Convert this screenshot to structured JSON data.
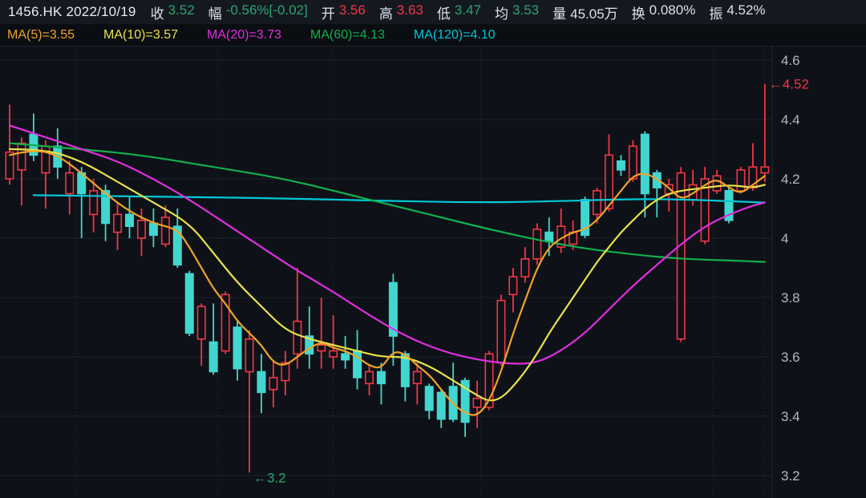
{
  "header": {
    "title": "1456.HK 2022/10/19",
    "fields": [
      {
        "label": "收",
        "value": "3.52",
        "color": "green"
      },
      {
        "label": "幅",
        "value": "-0.56%[-0.02]",
        "color": "green"
      },
      {
        "label": "开",
        "value": "3.56",
        "color": "red"
      },
      {
        "label": "高",
        "value": "3.63",
        "color": "red"
      },
      {
        "label": "低",
        "value": "3.47",
        "color": "green"
      },
      {
        "label": "均",
        "value": "3.53",
        "color": "green"
      },
      {
        "label": "量",
        "value": "45.05万",
        "color": "white"
      },
      {
        "label": "换",
        "value": "0.080%",
        "color": "white"
      },
      {
        "label": "振",
        "value": "4.52%",
        "color": "white"
      }
    ]
  },
  "ma_legend": [
    {
      "text": "MA(5)=3.55",
      "color": "#f0a32a"
    },
    {
      "text": "MA(10)=3.57",
      "color": "#e9e14b"
    },
    {
      "text": "MA(20)=3.73",
      "color": "#e02ee0"
    },
    {
      "text": "MA(60)=4.13",
      "color": "#12b04d"
    },
    {
      "text": "MA(120)=4.10",
      "color": "#00c8d8"
    }
  ],
  "colors": {
    "bg": "#0e1218",
    "header_bg": "#14181f",
    "legend_bg": "#0a0d12",
    "grid": "#1b212a",
    "grid_dotted": "#262c36",
    "axis_line": "#232833",
    "axis_text": "#b2b7c0",
    "up_candle": "#f23645",
    "down_candle": "#42d6d0",
    "text_green": "#2ba471",
    "text_red": "#f23645",
    "text_white": "#dde1e8"
  },
  "chart_data": {
    "type": "candlestick",
    "title": "1456.HK daily candlesticks with MA(5/10/20/60/120) overlays",
    "legend_position": "top-left",
    "y_axis": {
      "side": "right",
      "min": 3.15,
      "max": 4.65,
      "grid": true,
      "ticks": [
        {
          "label": "4.6",
          "value": 4.6
        },
        {
          "label": "4.4",
          "value": 4.4
        },
        {
          "label": "4.2",
          "value": 4.2
        },
        {
          "label": "4",
          "value": 4.0
        },
        {
          "label": "3.8",
          "value": 3.8
        },
        {
          "label": "3.6",
          "value": 3.6
        },
        {
          "label": "3.4",
          "value": 3.4
        },
        {
          "label": "3.2",
          "value": 3.2
        }
      ]
    },
    "x_axis": {
      "labels_visible": false,
      "bars": 64
    },
    "time_gridlines_bar_index": [
      5.6,
      17.4,
      27.0,
      39.3,
      58.7,
      63.0
    ],
    "candles_format": "[open, high, low, close]",
    "candles": [
      [
        4.2,
        4.45,
        4.18,
        4.29
      ],
      [
        4.23,
        4.34,
        4.11,
        4.32
      ],
      [
        4.35,
        4.42,
        4.26,
        4.28
      ],
      [
        4.22,
        4.33,
        4.1,
        4.31
      ],
      [
        4.31,
        4.37,
        4.2,
        4.24
      ],
      [
        4.15,
        4.26,
        4.08,
        4.22
      ],
      [
        4.22,
        4.24,
        4.0,
        4.15
      ],
      [
        4.08,
        4.2,
        4.02,
        4.16
      ],
      [
        4.16,
        4.18,
        3.99,
        4.05
      ],
      [
        4.02,
        4.12,
        3.96,
        4.08
      ],
      [
        4.08,
        4.14,
        4.0,
        4.04
      ],
      [
        4.0,
        4.1,
        3.94,
        4.06
      ],
      [
        4.05,
        4.1,
        3.97,
        4.01
      ],
      [
        3.98,
        4.11,
        3.97,
        4.07
      ],
      [
        4.04,
        4.1,
        3.9,
        3.91
      ],
      [
        3.88,
        3.89,
        3.67,
        3.68
      ],
      [
        3.66,
        3.78,
        3.57,
        3.77
      ],
      [
        3.65,
        3.78,
        3.54,
        3.55
      ],
      [
        3.62,
        3.82,
        3.61,
        3.81
      ],
      [
        3.7,
        3.72,
        3.52,
        3.56
      ],
      [
        3.55,
        3.69,
        3.21,
        3.66
      ],
      [
        3.55,
        3.61,
        3.41,
        3.48
      ],
      [
        3.49,
        3.59,
        3.43,
        3.53
      ],
      [
        3.52,
        3.62,
        3.47,
        3.58
      ],
      [
        3.61,
        3.9,
        3.56,
        3.72
      ],
      [
        3.67,
        3.77,
        3.56,
        3.61
      ],
      [
        3.62,
        3.8,
        3.56,
        3.64
      ],
      [
        3.6,
        3.74,
        3.56,
        3.62
      ],
      [
        3.61,
        3.67,
        3.56,
        3.59
      ],
      [
        3.62,
        3.69,
        3.49,
        3.53
      ],
      [
        3.51,
        3.57,
        3.47,
        3.55
      ],
      [
        3.55,
        3.58,
        3.44,
        3.51
      ],
      [
        3.85,
        3.88,
        3.57,
        3.67
      ],
      [
        3.61,
        3.62,
        3.45,
        3.5
      ],
      [
        3.51,
        3.58,
        3.44,
        3.55
      ],
      [
        3.5,
        3.51,
        3.39,
        3.42
      ],
      [
        3.48,
        3.49,
        3.36,
        3.39
      ],
      [
        3.5,
        3.58,
        3.38,
        3.39
      ],
      [
        3.52,
        3.53,
        3.33,
        3.38
      ],
      [
        3.43,
        3.52,
        3.36,
        3.46
      ],
      [
        3.43,
        3.62,
        3.42,
        3.61
      ],
      [
        3.58,
        3.81,
        3.57,
        3.79
      ],
      [
        3.81,
        3.9,
        3.75,
        3.87
      ],
      [
        3.87,
        3.97,
        3.85,
        3.93
      ],
      [
        3.93,
        4.05,
        3.91,
        4.03
      ],
      [
        4.02,
        4.07,
        3.94,
        3.99
      ],
      [
        3.97,
        4.1,
        3.95,
        4.04
      ],
      [
        3.98,
        4.06,
        3.96,
        4.02
      ],
      [
        4.13,
        4.14,
        4.0,
        4.01
      ],
      [
        4.08,
        4.17,
        4.05,
        4.16
      ],
      [
        4.1,
        4.35,
        4.09,
        4.28
      ],
      [
        4.26,
        4.28,
        4.21,
        4.23
      ],
      [
        4.2,
        4.33,
        4.19,
        4.31
      ],
      [
        4.35,
        4.36,
        4.07,
        4.15
      ],
      [
        4.22,
        4.23,
        4.07,
        4.17
      ],
      [
        4.15,
        4.2,
        4.09,
        4.18
      ],
      [
        3.66,
        4.24,
        3.65,
        4.22
      ],
      [
        4.13,
        4.23,
        4.11,
        4.18
      ],
      [
        3.99,
        4.24,
        3.98,
        4.2
      ],
      [
        4.16,
        4.23,
        4.15,
        4.21
      ],
      [
        4.16,
        4.17,
        4.05,
        4.06
      ],
      [
        4.16,
        4.24,
        4.15,
        4.23
      ],
      [
        4.17,
        4.32,
        4.16,
        4.24
      ],
      [
        4.22,
        4.52,
        4.19,
        4.24
      ]
    ],
    "ma_series": [
      {
        "name": "MA120",
        "color": "#00c8d8",
        "points": [
          [
            2,
            4.145
          ],
          [
            12,
            4.14
          ],
          [
            22,
            4.135
          ],
          [
            32,
            4.125
          ],
          [
            40,
            4.12
          ],
          [
            46,
            4.125
          ],
          [
            50,
            4.13
          ],
          [
            54,
            4.132
          ],
          [
            58,
            4.128
          ],
          [
            63,
            4.12
          ]
        ]
      },
      {
        "name": "MA60",
        "color": "#12b04d",
        "points": [
          [
            0,
            4.32
          ],
          [
            6,
            4.3
          ],
          [
            11,
            4.28
          ],
          [
            17,
            4.24
          ],
          [
            23,
            4.2
          ],
          [
            29,
            4.14
          ],
          [
            35,
            4.08
          ],
          [
            41,
            4.02
          ],
          [
            47,
            3.97
          ],
          [
            52,
            3.945
          ],
          [
            56,
            3.93
          ],
          [
            60,
            3.925
          ],
          [
            63,
            3.92
          ]
        ]
      },
      {
        "name": "MA20",
        "color": "#e02ee0",
        "points": [
          [
            0,
            4.38
          ],
          [
            3,
            4.34
          ],
          [
            6,
            4.3
          ],
          [
            9,
            4.26
          ],
          [
            12,
            4.2
          ],
          [
            15,
            4.13
          ],
          [
            18,
            4.05
          ],
          [
            21,
            3.97
          ],
          [
            24,
            3.89
          ],
          [
            27,
            3.82
          ],
          [
            30,
            3.74
          ],
          [
            33,
            3.67
          ],
          [
            36,
            3.62
          ],
          [
            39,
            3.59
          ],
          [
            42,
            3.575
          ],
          [
            44,
            3.58
          ],
          [
            46,
            3.62
          ],
          [
            48,
            3.68
          ],
          [
            50,
            3.76
          ],
          [
            52,
            3.84
          ],
          [
            54,
            3.91
          ],
          [
            56,
            3.98
          ],
          [
            58,
            4.04
          ],
          [
            60,
            4.08
          ],
          [
            62,
            4.11
          ],
          [
            63,
            4.12
          ]
        ]
      },
      {
        "name": "MA10",
        "color": "#e9e14b",
        "points": [
          [
            0,
            4.3
          ],
          [
            3,
            4.3
          ],
          [
            6,
            4.26
          ],
          [
            9,
            4.19
          ],
          [
            12,
            4.12
          ],
          [
            15,
            4.05
          ],
          [
            17,
            3.95
          ],
          [
            19,
            3.85
          ],
          [
            21,
            3.77
          ],
          [
            23,
            3.69
          ],
          [
            25,
            3.66
          ],
          [
            27,
            3.64
          ],
          [
            29,
            3.62
          ],
          [
            31,
            3.6
          ],
          [
            33,
            3.6
          ],
          [
            35,
            3.57
          ],
          [
            37,
            3.52
          ],
          [
            39,
            3.47
          ],
          [
            40,
            3.45
          ],
          [
            41,
            3.46
          ],
          [
            42,
            3.5
          ],
          [
            43,
            3.55
          ],
          [
            44,
            3.61
          ],
          [
            45,
            3.68
          ],
          [
            46,
            3.74
          ],
          [
            47,
            3.8
          ],
          [
            48,
            3.86
          ],
          [
            49,
            3.92
          ],
          [
            50,
            3.97
          ],
          [
            51,
            4.02
          ],
          [
            52,
            4.06
          ],
          [
            53,
            4.1
          ],
          [
            54,
            4.13
          ],
          [
            55,
            4.15
          ],
          [
            56,
            4.16
          ],
          [
            58,
            4.17
          ],
          [
            60,
            4.18
          ],
          [
            62,
            4.17
          ],
          [
            63,
            4.18
          ]
        ]
      },
      {
        "name": "MA5",
        "color": "#f0a32a",
        "points": [
          [
            0,
            4.28
          ],
          [
            2,
            4.3
          ],
          [
            4,
            4.28
          ],
          [
            6,
            4.22
          ],
          [
            8,
            4.15
          ],
          [
            10,
            4.09
          ],
          [
            12,
            4.05
          ],
          [
            14,
            4.03
          ],
          [
            15,
            3.97
          ],
          [
            16,
            3.9
          ],
          [
            17,
            3.83
          ],
          [
            18,
            3.78
          ],
          [
            19,
            3.72
          ],
          [
            20,
            3.68
          ],
          [
            21,
            3.64
          ],
          [
            22,
            3.58
          ],
          [
            23,
            3.57
          ],
          [
            24,
            3.6
          ],
          [
            25,
            3.63
          ],
          [
            26,
            3.65
          ],
          [
            27,
            3.63
          ],
          [
            28,
            3.62
          ],
          [
            29,
            3.6
          ],
          [
            30,
            3.57
          ],
          [
            31,
            3.56
          ],
          [
            32,
            3.62
          ],
          [
            33,
            3.61
          ],
          [
            34,
            3.57
          ],
          [
            35,
            3.54
          ],
          [
            36,
            3.49
          ],
          [
            37,
            3.44
          ],
          [
            38,
            3.41
          ],
          [
            39,
            3.4
          ],
          [
            40,
            3.45
          ],
          [
            41,
            3.55
          ],
          [
            42,
            3.68
          ],
          [
            43,
            3.79
          ],
          [
            44,
            3.9
          ],
          [
            45,
            3.97
          ],
          [
            46,
            4.0
          ],
          [
            47,
            4.02
          ],
          [
            48,
            4.03
          ],
          [
            49,
            4.06
          ],
          [
            50,
            4.11
          ],
          [
            51,
            4.16
          ],
          [
            52,
            4.21
          ],
          [
            53,
            4.22
          ],
          [
            54,
            4.2
          ],
          [
            55,
            4.17
          ],
          [
            56,
            4.13
          ],
          [
            57,
            4.15
          ],
          [
            58,
            4.18
          ],
          [
            59,
            4.2
          ],
          [
            60,
            4.17
          ],
          [
            61,
            4.15
          ],
          [
            62,
            4.18
          ],
          [
            63,
            4.21
          ]
        ]
      }
    ],
    "annotations": [
      {
        "text": "←4.52",
        "price": 4.52,
        "bar_index": 63,
        "color": "#f23645",
        "placement": "at-high"
      },
      {
        "text": "←3.2",
        "price": 3.21,
        "bar_index": 20,
        "color": "#2ba471",
        "placement": "at-low"
      }
    ]
  }
}
